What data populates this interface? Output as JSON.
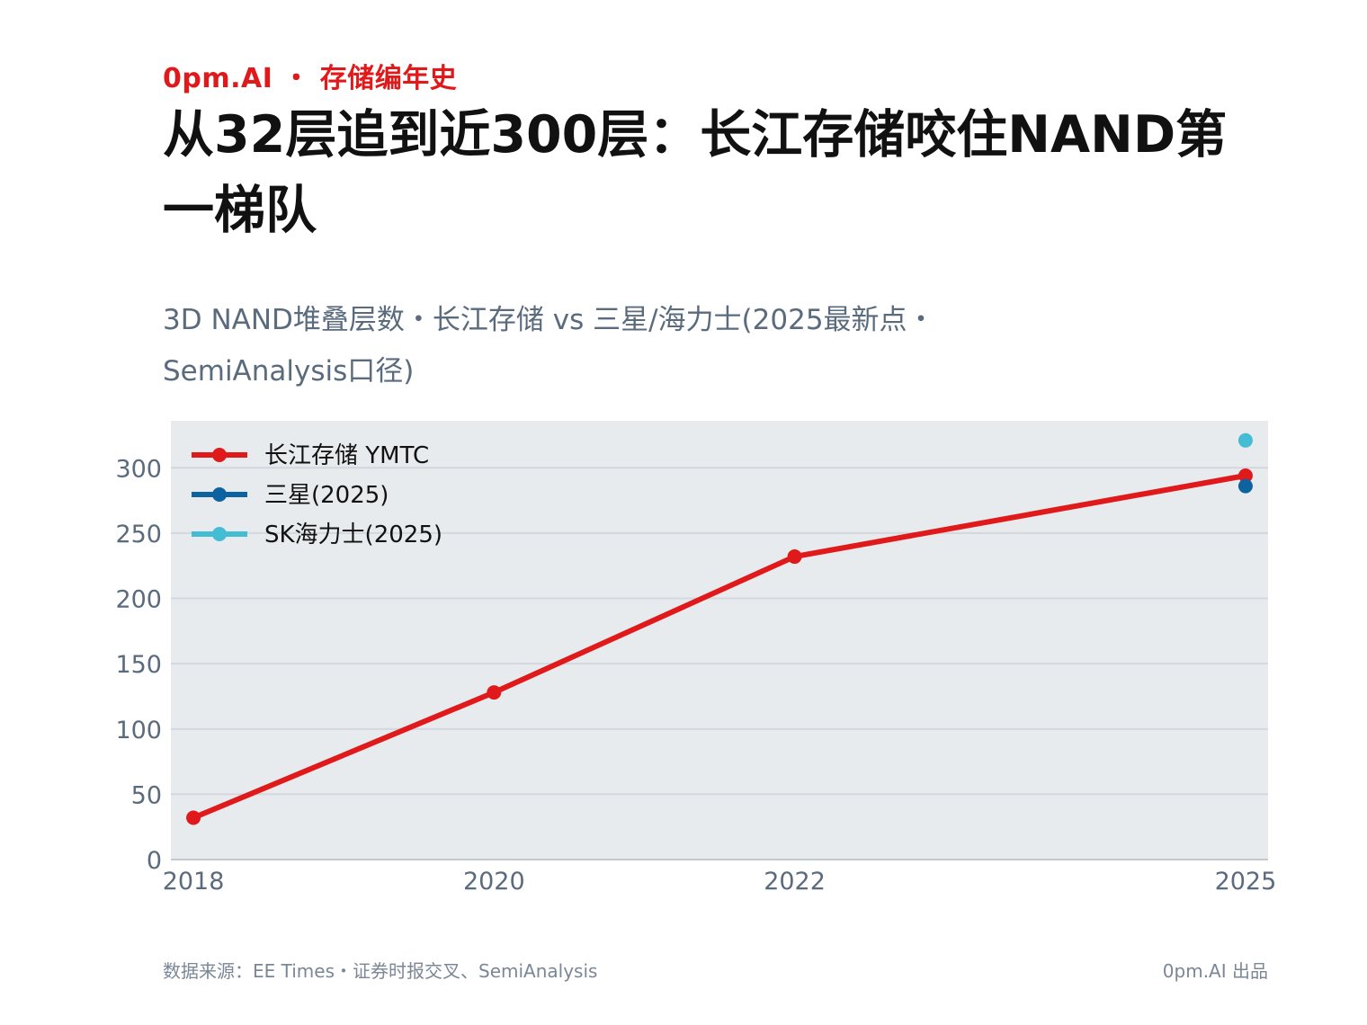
{
  "header": {
    "brand": "0pm.AI ・ 存储编年史",
    "title": "从32层追到近300层：长江存储咬住NAND第一梯队",
    "subtitle": "3D NAND堆叠层数・长江存储 vs 三星/海力士(2025最新点・SemiAnalysis口径)"
  },
  "footer": {
    "source": "数据来源：EE Times・证券时报交叉、SemiAnalysis",
    "credit": "0pm.AI 出品"
  },
  "chart_data": {
    "type": "line",
    "title": "",
    "xlabel": "",
    "ylabel": "",
    "x_ticks": [
      "2018",
      "2020",
      "2022",
      "2025"
    ],
    "y_ticks": [
      0,
      50,
      100,
      150,
      200,
      250,
      300
    ],
    "xlim": [
      2017.85,
      2025.15
    ],
    "ylim": [
      0,
      336
    ],
    "grid": true,
    "legend_position": "top-left",
    "series": [
      {
        "name": "长江存储 YMTC",
        "color": "#e0191b",
        "x": [
          2018,
          2020,
          2022,
          2025
        ],
        "y": [
          32,
          128,
          232,
          294
        ]
      },
      {
        "name": "三星(2025)",
        "color": "#0d63a0",
        "x": [
          2025
        ],
        "y": [
          286
        ]
      },
      {
        "name": "SK海力士(2025)",
        "color": "#44bcd4",
        "x": [
          2025
        ],
        "y": [
          321
        ]
      }
    ],
    "colors": {
      "plot_background": "#e8ebee",
      "grid": "#d3d8de",
      "axis_text": "#5a6b7e"
    }
  }
}
